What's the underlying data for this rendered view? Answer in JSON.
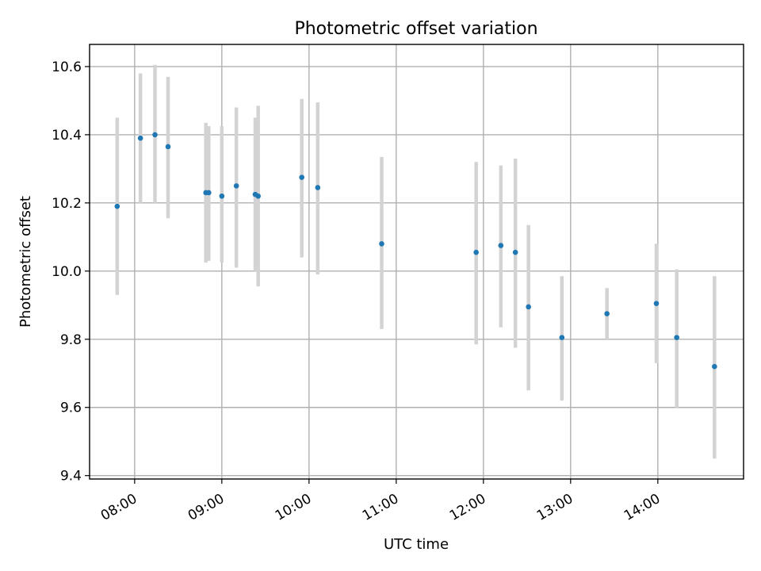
{
  "chart_data": {
    "type": "scatter",
    "title": "Photometric offset variation",
    "xlabel": "UTC time",
    "ylabel": "Photometric offset",
    "xlim": [
      "07:29",
      "14:59"
    ],
    "ylim": [
      9.39,
      10.665
    ],
    "x_ticks": [
      "08:00",
      "09:00",
      "10:00",
      "11:00",
      "12:00",
      "13:00",
      "14:00"
    ],
    "y_ticks": [
      9.4,
      9.6,
      9.8,
      10.0,
      10.2,
      10.4,
      10.6
    ],
    "grid": true,
    "marker_color": "#1f77b4",
    "errorbar_color": "#d3d3d3",
    "points": [
      {
        "t": "07:48",
        "y": 10.19,
        "lo": 9.93,
        "hi": 10.45
      },
      {
        "t": "08:04",
        "y": 10.39,
        "lo": 10.2,
        "hi": 10.58
      },
      {
        "t": "08:14",
        "y": 10.4,
        "lo": 10.2,
        "hi": 10.605
      },
      {
        "t": "08:23",
        "y": 10.365,
        "lo": 10.155,
        "hi": 10.57
      },
      {
        "t": "08:49",
        "y": 10.23,
        "lo": 10.025,
        "hi": 10.435
      },
      {
        "t": "08:51",
        "y": 10.23,
        "lo": 10.03,
        "hi": 10.425
      },
      {
        "t": "09:00",
        "y": 10.22,
        "lo": 10.025,
        "hi": 10.425
      },
      {
        "t": "09:10",
        "y": 10.25,
        "lo": 10.01,
        "hi": 10.48
      },
      {
        "t": "09:23",
        "y": 10.225,
        "lo": 10.0,
        "hi": 10.45
      },
      {
        "t": "09:25",
        "y": 10.22,
        "lo": 9.955,
        "hi": 10.485
      },
      {
        "t": "09:55",
        "y": 10.275,
        "lo": 10.04,
        "hi": 10.505
      },
      {
        "t": "10:06",
        "y": 10.245,
        "lo": 9.99,
        "hi": 10.495
      },
      {
        "t": "10:50",
        "y": 10.08,
        "lo": 9.83,
        "hi": 10.335
      },
      {
        "t": "11:55",
        "y": 10.055,
        "lo": 9.785,
        "hi": 10.32
      },
      {
        "t": "12:12",
        "y": 10.075,
        "lo": 9.835,
        "hi": 10.31
      },
      {
        "t": "12:22",
        "y": 10.055,
        "lo": 9.775,
        "hi": 10.33
      },
      {
        "t": "12:31",
        "y": 9.895,
        "lo": 9.65,
        "hi": 10.135
      },
      {
        "t": "12:54",
        "y": 9.805,
        "lo": 9.62,
        "hi": 9.985
      },
      {
        "t": "13:25",
        "y": 9.875,
        "lo": 9.8,
        "hi": 9.95
      },
      {
        "t": "13:59",
        "y": 9.905,
        "lo": 9.73,
        "hi": 10.08
      },
      {
        "t": "14:13",
        "y": 9.805,
        "lo": 9.6,
        "hi": 10.005
      },
      {
        "t": "14:39",
        "y": 9.72,
        "lo": 9.45,
        "hi": 9.985
      }
    ]
  }
}
